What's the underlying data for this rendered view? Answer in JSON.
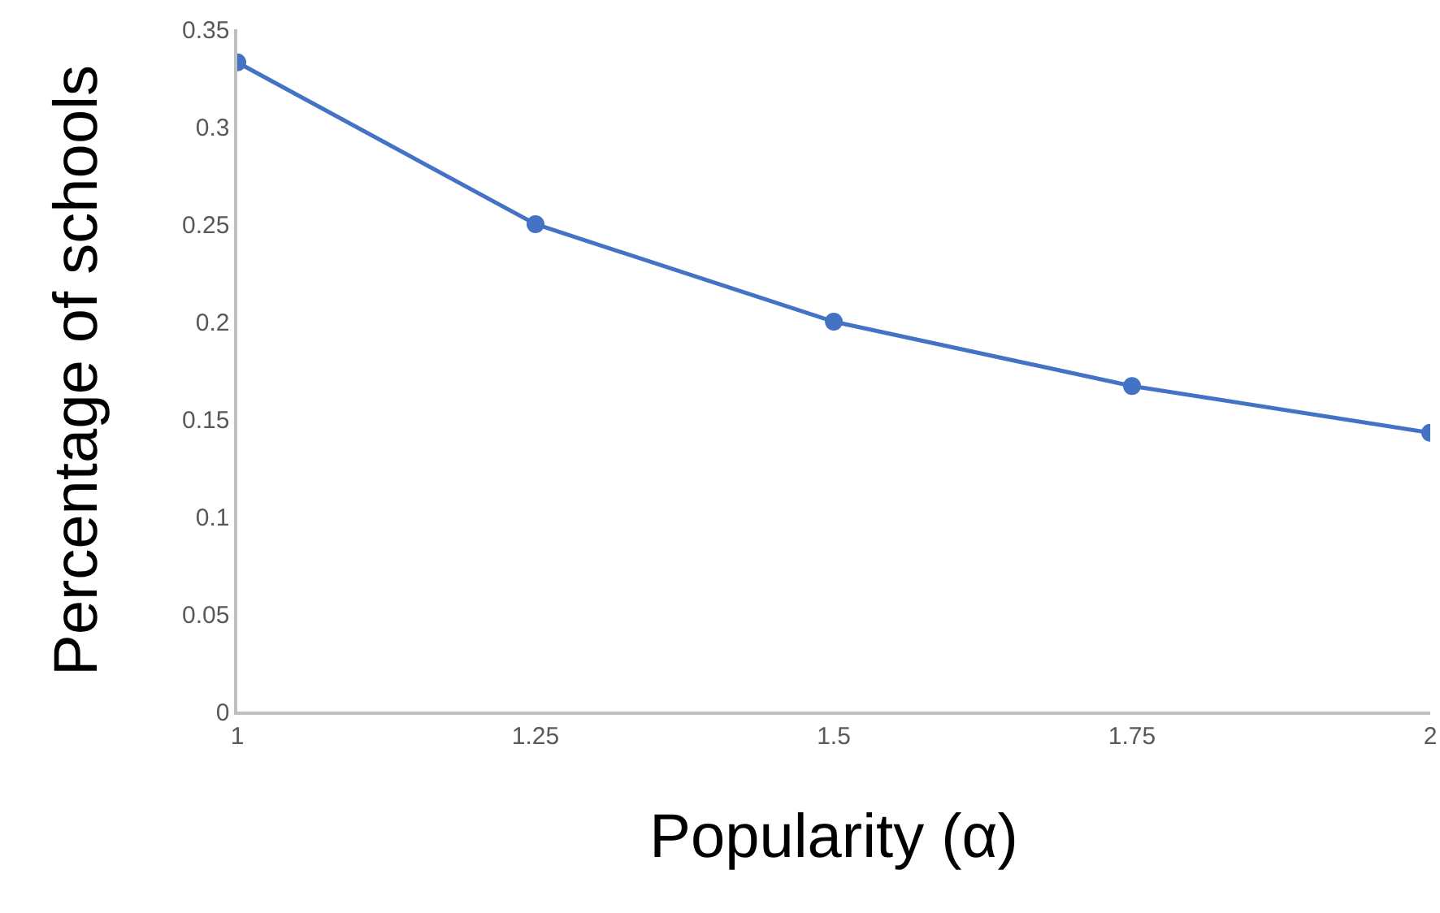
{
  "chart_data": {
    "type": "line",
    "xlabel": "Popularity (α)",
    "ylabel": "Percentage of schools",
    "x": [
      1,
      1.25,
      1.5,
      1.75,
      2
    ],
    "series": [
      {
        "color": "#4472c4",
        "values": [
          0.333,
          0.25,
          0.2,
          0.167,
          0.143
        ]
      }
    ],
    "xlim": [
      1,
      2
    ],
    "xticks": [
      1,
      1.25,
      1.5,
      1.75,
      2
    ],
    "ylim": [
      0,
      0.35
    ],
    "yticks": [
      0,
      0.05,
      0.1,
      0.15,
      0.2,
      0.25,
      0.3,
      0.35
    ],
    "grid": false,
    "marker": "circle",
    "line_style": "solid"
  }
}
